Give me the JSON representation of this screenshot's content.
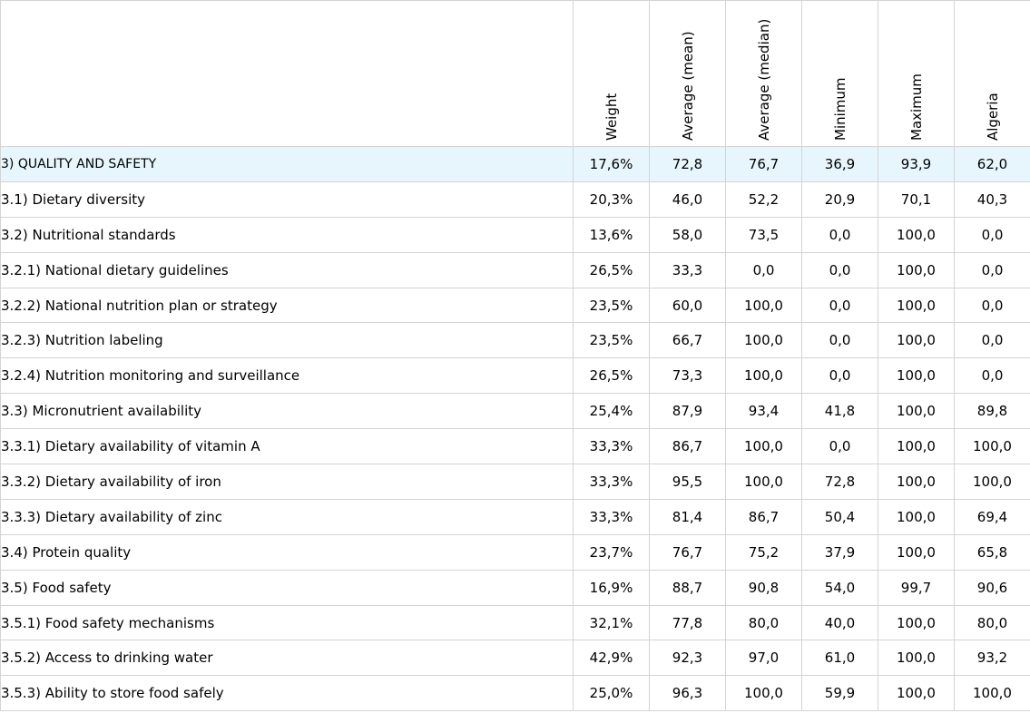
{
  "columns": [
    "Weight",
    "Average (mean)",
    "Average (median)",
    "Minimum",
    "Maximum",
    "Algeria"
  ],
  "rows": [
    {
      "label": "3) QUALITY AND SAFETY",
      "values": [
        "17,6%",
        "72,8",
        "76,7",
        "36,9",
        "93,9",
        "62,0"
      ],
      "highlight": true
    },
    {
      "label": "3.1) Dietary diversity",
      "values": [
        "20,3%",
        "46,0",
        "52,2",
        "20,9",
        "70,1",
        "40,3"
      ]
    },
    {
      "label": "3.2) Nutritional standards",
      "values": [
        "13,6%",
        "58,0",
        "73,5",
        "0,0",
        "100,0",
        "0,0"
      ]
    },
    {
      "label": "3.2.1) National dietary guidelines",
      "values": [
        "26,5%",
        "33,3",
        "0,0",
        "0,0",
        "100,0",
        "0,0"
      ]
    },
    {
      "label": "3.2.2) National nutrition plan or strategy",
      "values": [
        "23,5%",
        "60,0",
        "100,0",
        "0,0",
        "100,0",
        "0,0"
      ]
    },
    {
      "label": "3.2.3) Nutrition labeling",
      "values": [
        "23,5%",
        "66,7",
        "100,0",
        "0,0",
        "100,0",
        "0,0"
      ]
    },
    {
      "label": "3.2.4) Nutrition monitoring and surveillance",
      "values": [
        "26,5%",
        "73,3",
        "100,0",
        "0,0",
        "100,0",
        "0,0"
      ]
    },
    {
      "label": "3.3) Micronutrient availability",
      "values": [
        "25,4%",
        "87,9",
        "93,4",
        "41,8",
        "100,0",
        "89,8"
      ]
    },
    {
      "label": "3.3.1) Dietary availability of vitamin A",
      "values": [
        "33,3%",
        "86,7",
        "100,0",
        "0,0",
        "100,0",
        "100,0"
      ]
    },
    {
      "label": "3.3.2) Dietary availability of iron",
      "values": [
        "33,3%",
        "95,5",
        "100,0",
        "72,8",
        "100,0",
        "100,0"
      ]
    },
    {
      "label": "3.3.3) Dietary availability of zinc",
      "values": [
        "33,3%",
        "81,4",
        "86,7",
        "50,4",
        "100,0",
        "69,4"
      ]
    },
    {
      "label": "3.4) Protein quality",
      "values": [
        "23,7%",
        "76,7",
        "75,2",
        "37,9",
        "100,0",
        "65,8"
      ]
    },
    {
      "label": "3.5) Food safety",
      "values": [
        "16,9%",
        "88,7",
        "90,8",
        "54,0",
        "99,7",
        "90,6"
      ]
    },
    {
      "label": "3.5.1) Food safety mechanisms",
      "values": [
        "32,1%",
        "77,8",
        "80,0",
        "40,0",
        "100,0",
        "80,0"
      ]
    },
    {
      "label": "3.5.2) Access to drinking water",
      "values": [
        "42,9%",
        "92,3",
        "97,0",
        "61,0",
        "100,0",
        "93,2"
      ]
    },
    {
      "label": "3.5.3) Ability to store food safely",
      "values": [
        "25,0%",
        "96,3",
        "100,0",
        "59,9",
        "100,0",
        "100,0"
      ]
    }
  ],
  "colors": {
    "highlight_row": "#e7f6fd",
    "grid": "#d4d4d4"
  }
}
